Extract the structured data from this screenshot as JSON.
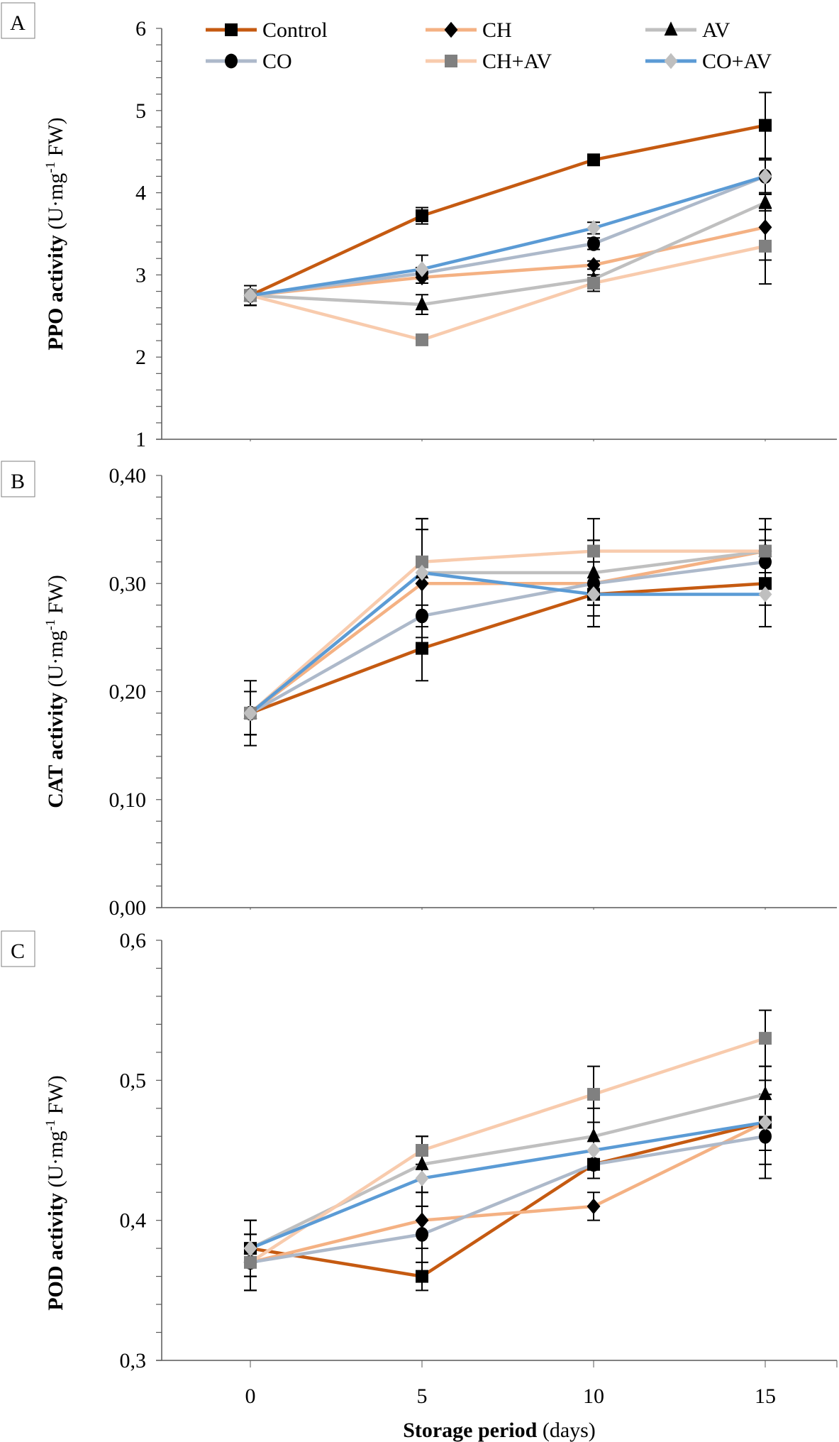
{
  "chart_data": {
    "type": "line",
    "x": [
      0,
      5,
      10,
      15
    ],
    "xlabel_bold": "Storage period",
    "xlabel_rest": " (days)",
    "x_tick_labels": [
      "0",
      "5",
      "10",
      "15"
    ],
    "legend": {
      "placement": "top",
      "entries": [
        {
          "name": "Control",
          "marker": "square",
          "line_color": "#C55A11",
          "marker_color": "#000000"
        },
        {
          "name": "CH",
          "marker": "diamond",
          "line_color": "#F4B183",
          "marker_color": "#000000"
        },
        {
          "name": "AV",
          "marker": "triangle",
          "line_color": "#BFBFBF",
          "marker_color": "#000000"
        },
        {
          "name": "CO",
          "marker": "circle",
          "line_color": "#ADB9CA",
          "marker_color": "#000000"
        },
        {
          "name": "CH+AV",
          "marker": "square",
          "line_color": "#F8CBAD",
          "marker_color": "#808080"
        },
        {
          "name": "CO+AV",
          "marker": "diamond",
          "line_color": "#5B9BD5",
          "marker_color": "#BFBFBF"
        }
      ]
    },
    "panels": [
      {
        "letter": "A",
        "ylabel_bold": "PPO activity",
        "ylabel_rest": " (U·mg",
        "ylabel_sup": "-1",
        "ylabel_end": " FW)",
        "ylim": [
          1,
          6
        ],
        "y_ticks": [
          1,
          2,
          3,
          4,
          5,
          6
        ],
        "y_tick_labels": [
          "1",
          "2",
          "3",
          "4",
          "5",
          "6"
        ],
        "minor_step": 0.2,
        "series": [
          {
            "name": "Control",
            "values": [
              2.75,
              3.72,
              4.4,
              4.82
            ],
            "errors": [
              0.12,
              0.1,
              0.05,
              0.4
            ]
          },
          {
            "name": "CH",
            "values": [
              2.75,
              2.97,
              3.12,
              3.58
            ],
            "errors": [
              0.12,
              0.07,
              0.05,
              0.4
            ]
          },
          {
            "name": "AV",
            "values": [
              2.75,
              2.64,
              2.95,
              3.88
            ],
            "errors": [
              0.12,
              0.12,
              0.05,
              0.1
            ]
          },
          {
            "name": "CO",
            "values": [
              2.75,
              3.02,
              3.38,
              4.2
            ],
            "errors": [
              0.12,
              0.07,
              0.07,
              0.2
            ]
          },
          {
            "name": "CH+AV",
            "values": [
              2.75,
              2.21,
              2.9,
              3.35
            ],
            "errors": [
              0.12,
              0.03,
              0.1,
              0.46
            ]
          },
          {
            "name": "CO+AV",
            "values": [
              2.75,
              3.07,
              3.57,
              4.2
            ],
            "errors": [
              0.12,
              0.17,
              0.07,
              0.2
            ]
          }
        ]
      },
      {
        "letter": "B",
        "ylabel_bold": "CAT activity",
        "ylabel_rest": " (U·mg",
        "ylabel_sup": "-1",
        "ylabel_end": " FW)",
        "ylim": [
          0,
          0.4
        ],
        "y_ticks": [
          0,
          0.1,
          0.2,
          0.3,
          0.4
        ],
        "y_tick_labels": [
          "0,00",
          "0,10",
          "0,20",
          "0,30",
          "0,40"
        ],
        "minor_step": 0.02,
        "series": [
          {
            "name": "Control",
            "values": [
              0.18,
              0.24,
              0.29,
              0.3
            ],
            "errors": [
              0.03,
              0.03,
              0.01,
              0.02
            ]
          },
          {
            "name": "CH",
            "values": [
              0.18,
              0.3,
              0.3,
              0.33
            ],
            "errors": [
              0.02,
              0.05,
              0.03,
              0.02
            ]
          },
          {
            "name": "AV",
            "values": [
              0.18,
              0.31,
              0.31,
              0.33
            ],
            "errors": [
              0.02,
              0.05,
              0.03,
              0.02
            ]
          },
          {
            "name": "CO",
            "values": [
              0.18,
              0.27,
              0.3,
              0.32
            ],
            "errors": [
              0.02,
              0.03,
              0.04,
              0.02
            ]
          },
          {
            "name": "CH+AV",
            "values": [
              0.18,
              0.32,
              0.33,
              0.33
            ],
            "errors": [
              0.02,
              0.04,
              0.03,
              0.03
            ]
          },
          {
            "name": "CO+AV",
            "values": [
              0.18,
              0.31,
              0.29,
              0.29
            ],
            "errors": [
              0.02,
              0.04,
              0.03,
              0.03
            ]
          }
        ]
      },
      {
        "letter": "C",
        "ylabel_bold": "POD activity",
        "ylabel_rest": " (U·mg",
        "ylabel_sup": "-1",
        "ylabel_end": " FW)",
        "ylim": [
          0.3,
          0.6
        ],
        "y_ticks": [
          0.3,
          0.4,
          0.5,
          0.6
        ],
        "y_tick_labels": [
          "0,3",
          "0,4",
          "0,5",
          "0,6"
        ],
        "minor_step": 0.02,
        "series": [
          {
            "name": "Control",
            "values": [
              0.38,
              0.36,
              0.44,
              0.47
            ],
            "errors": [
              0.02,
              0.01,
              0.01,
              0.02
            ]
          },
          {
            "name": "CH",
            "values": [
              0.37,
              0.4,
              0.41,
              0.47
            ],
            "errors": [
              0.02,
              0.02,
              0.01,
              0.02
            ]
          },
          {
            "name": "AV",
            "values": [
              0.38,
              0.44,
              0.46,
              0.49
            ],
            "errors": [
              0.02,
              0.02,
              0.02,
              0.02
            ]
          },
          {
            "name": "CO",
            "values": [
              0.37,
              0.39,
              0.44,
              0.46
            ],
            "errors": [
              0.02,
              0.02,
              0.01,
              0.03
            ]
          },
          {
            "name": "CH+AV",
            "values": [
              0.37,
              0.45,
              0.49,
              0.53
            ],
            "errors": [
              0.02,
              0.01,
              0.02,
              0.02
            ]
          },
          {
            "name": "CO+AV",
            "values": [
              0.38,
              0.43,
              0.45,
              0.47
            ],
            "errors": [
              0.02,
              0.02,
              0.02,
              0.03
            ]
          }
        ]
      }
    ]
  }
}
